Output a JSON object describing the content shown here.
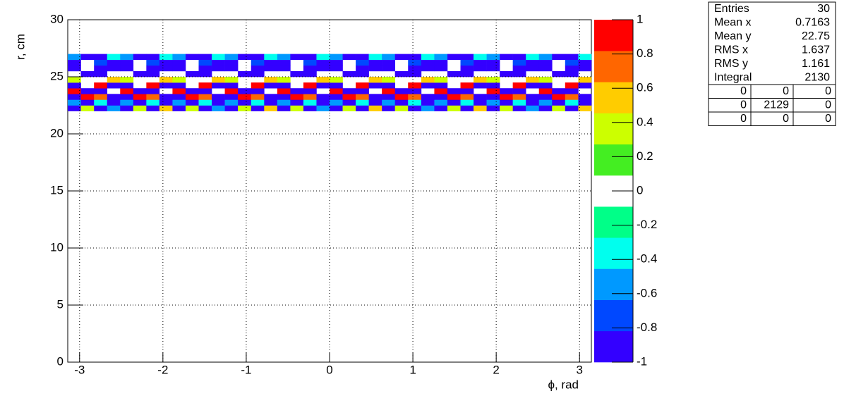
{
  "chart_data": {
    "type": "heatmap",
    "xlabel": "ϕ, rad",
    "ylabel": "r, cm",
    "xlim": [
      -3.142,
      3.142
    ],
    "ylim": [
      0,
      30
    ],
    "zlim": [
      -1,
      1
    ],
    "xticks": [
      -3,
      -2,
      -1,
      0,
      1,
      2,
      3
    ],
    "yticks": [
      0,
      5,
      10,
      15,
      20,
      25,
      30
    ],
    "zticks": [
      -1,
      -0.8,
      -0.6,
      -0.4,
      -0.2,
      0,
      0.2,
      0.4,
      0.6,
      0.8,
      1
    ],
    "grid": true,
    "palette": [
      "#3300ff",
      "#0048ff",
      "#0099ff",
      "#00ffee",
      "#00ff88",
      "#ffffff",
      "#44ee22",
      "#ccff00",
      "#ffcc00",
      "#ff6600",
      "#ff0000"
    ],
    "xbins": [
      -3.142,
      -2.985,
      -2.827,
      -2.67,
      -2.513,
      -2.356,
      -2.199,
      -2.042,
      -1.885,
      -1.728,
      -1.571,
      -1.414,
      -1.257,
      -1.1,
      -0.942,
      -0.785,
      -0.628,
      -0.471,
      -0.314,
      -0.157,
      0,
      0.157,
      0.314,
      0.471,
      0.628,
      0.785,
      0.942,
      1.1,
      1.257,
      1.414,
      1.571,
      1.728,
      1.885,
      2.042,
      2.199,
      2.356,
      2.513,
      2.67,
      2.827,
      2.985,
      3.142
    ],
    "ybins": [
      22,
      22.5,
      23,
      23.5,
      24,
      24.5,
      25,
      25.5,
      26,
      26.5,
      27
    ],
    "z": [
      [
        -0.9,
        0.3,
        -0.9,
        -0.5,
        -0.9,
        0.3,
        -0.9,
        0.5,
        -0.9,
        0.3,
        -0.9,
        -0.5,
        -0.9,
        0.3,
        -0.9,
        0.5,
        -0.9,
        0.3,
        -0.9,
        -0.5,
        -0.9,
        0.3,
        -0.9,
        0.5,
        -0.9,
        0.3,
        -0.9,
        -0.5,
        -0.9,
        0.3,
        -0.9,
        0.5,
        -0.9,
        0.3,
        -0.9,
        -0.5,
        -0.9,
        0.3,
        -0.9,
        0.5
      ],
      [
        -0.5,
        -0.9,
        -0.3,
        -0.9,
        -0.5,
        -0.9,
        -0.3,
        -0.9,
        -0.5,
        -0.9,
        -0.3,
        -0.9,
        -0.5,
        -0.9,
        -0.3,
        -0.9,
        -0.5,
        -0.9,
        -0.3,
        -0.9,
        -0.5,
        -0.9,
        -0.3,
        -0.9,
        -0.5,
        -0.9,
        -0.3,
        -0.9,
        -0.5,
        -0.9,
        -0.3,
        -0.9,
        -0.5,
        -0.9,
        -0.3,
        -0.9,
        -0.5,
        -0.9,
        -0.3,
        -0.9
      ],
      [
        -0.9,
        0.9,
        0.7,
        -0.9,
        -0.9,
        0.9,
        0.7,
        -0.9,
        -0.9,
        0.9,
        0.7,
        -0.9,
        -0.9,
        0.9,
        0.7,
        -0.9,
        -0.9,
        0.9,
        0.7,
        -0.9,
        -0.9,
        0.9,
        0.7,
        -0.9,
        -0.9,
        0.9,
        0.7,
        -0.9,
        -0.9,
        0.9,
        0.7,
        -0.9,
        -0.9,
        0.9,
        0.7,
        -0.9,
        -0.9,
        0.9,
        0.7,
        -0.9
      ],
      [
        0.9,
        -0.9,
        -0.9,
        0,
        0.9,
        -0.9,
        -0.9,
        0,
        0.9,
        -0.9,
        -0.9,
        0,
        0.9,
        -0.9,
        -0.9,
        0,
        0.9,
        -0.9,
        -0.9,
        0,
        0.9,
        -0.9,
        -0.9,
        0,
        0.9,
        -0.9,
        -0.9,
        0,
        0.9,
        -0.9,
        -0.9,
        0,
        0.9,
        -0.9,
        -0.9,
        0,
        0.9,
        -0.9,
        -0.9,
        0
      ],
      [
        -0.9,
        0,
        0.9,
        -0.9,
        -0.9,
        0,
        0.9,
        -0.9,
        -0.9,
        0,
        0.9,
        -0.9,
        -0.9,
        0,
        0.9,
        -0.9,
        -0.9,
        0,
        0.9,
        -0.9,
        -0.9,
        0,
        0.9,
        -0.9,
        -0.9,
        0,
        0.9,
        -0.9,
        -0.9,
        0,
        0.9,
        -0.9,
        -0.9,
        0,
        0.9,
        -0.9,
        -0.9,
        0,
        0.9,
        -0.9
      ],
      [
        0.3,
        0,
        0,
        0.5,
        0.3,
        0,
        0,
        0.5,
        0.3,
        0,
        0,
        0.5,
        0.3,
        0,
        0,
        0.5,
        0.3,
        0,
        0,
        0.5,
        0.3,
        0,
        0,
        0.5,
        0.3,
        0,
        0,
        0.5,
        0.3,
        0,
        0,
        0.5,
        0.3,
        0,
        0,
        0.5,
        0.3,
        0,
        0,
        0.5
      ],
      [
        0,
        -0.9,
        -0.9,
        0,
        0,
        -0.9,
        -0.9,
        0,
        0,
        -0.9,
        -0.9,
        0,
        0,
        -0.9,
        -0.9,
        0,
        0,
        -0.9,
        -0.9,
        0,
        0,
        -0.9,
        -0.9,
        0,
        0,
        -0.9,
        -0.9,
        0,
        0,
        -0.9,
        -0.9,
        0,
        0,
        -0.9,
        -0.9,
        0,
        0,
        -0.9,
        -0.9,
        0
      ],
      [
        -0.9,
        0,
        -0.9,
        -0.9,
        -0.9,
        0,
        -0.9,
        -0.9,
        -0.9,
        0,
        -0.9,
        -0.9,
        -0.9,
        0,
        -0.9,
        -0.9,
        -0.9,
        0,
        -0.9,
        -0.9,
        -0.9,
        0,
        -0.9,
        -0.9,
        -0.9,
        0,
        -0.9,
        -0.9,
        -0.9,
        0,
        -0.9,
        -0.9,
        -0.9,
        0,
        -0.9,
        -0.9,
        -0.9,
        0,
        -0.9,
        -0.9
      ],
      [
        -0.9,
        0,
        -0.7,
        -0.9,
        -0.9,
        0,
        -0.7,
        -0.9,
        -0.9,
        0,
        -0.7,
        -0.9,
        -0.9,
        0,
        -0.7,
        -0.9,
        -0.9,
        0,
        -0.7,
        -0.9,
        -0.9,
        0,
        -0.7,
        -0.9,
        -0.9,
        0,
        -0.7,
        -0.9,
        -0.9,
        0,
        -0.7,
        -0.9,
        -0.9,
        0,
        -0.7,
        -0.9,
        -0.9,
        0,
        -0.7,
        -0.9
      ],
      [
        -0.5,
        -0.9,
        -0.9,
        -0.3,
        -0.5,
        -0.9,
        -0.9,
        -0.3,
        -0.5,
        -0.9,
        -0.9,
        -0.3,
        -0.5,
        -0.9,
        -0.9,
        -0.3,
        -0.5,
        -0.9,
        -0.9,
        -0.3,
        -0.5,
        -0.9,
        -0.9,
        -0.3,
        -0.5,
        -0.9,
        -0.9,
        -0.3,
        -0.5,
        -0.9,
        -0.9,
        -0.3,
        -0.5,
        -0.9,
        -0.9,
        -0.3,
        -0.5,
        -0.9,
        -0.9,
        -0.3
      ]
    ]
  },
  "stats": {
    "rows": [
      [
        "Entries",
        "30"
      ],
      [
        "Mean x",
        "0.7163"
      ],
      [
        "Mean y",
        "22.75"
      ],
      [
        "RMS x",
        "1.637"
      ],
      [
        "RMS y",
        "1.161"
      ],
      [
        "Integral",
        "2130"
      ]
    ],
    "grid": [
      [
        "0",
        "0",
        "0"
      ],
      [
        "0",
        "2129",
        "0"
      ],
      [
        "0",
        "0",
        "0"
      ]
    ]
  }
}
